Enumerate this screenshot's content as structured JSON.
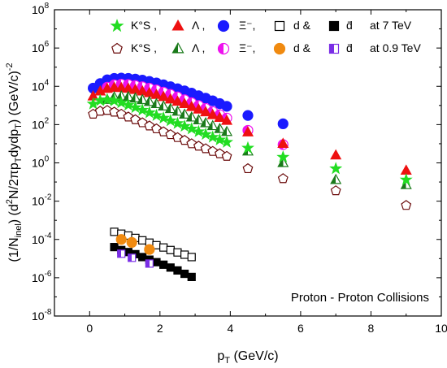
{
  "chart_data": {
    "type": "scatter",
    "title": "",
    "xlabel": "p_T (GeV/c)",
    "ylabel": "(1/N_inel) (d²N/2πp_T dydp_T) (GeV/c)^-2",
    "xlim": [
      -1,
      10
    ],
    "ylim_log10": [
      -8,
      8
    ],
    "y_scale": "log",
    "x_ticks": [
      "0",
      "2",
      "4",
      "6",
      "8",
      "10"
    ],
    "y_ticks": [
      "-8",
      "-6",
      "-4",
      "-2",
      "0",
      "2",
      "4",
      "6",
      "8"
    ],
    "annotation": "Proton - Proton Collisions",
    "legend": {
      "row1": {
        "labels": [
          "K°S ,",
          "Λ ,",
          "Ξ⁻,",
          "d &",
          "d̄",
          "at 7 TeV"
        ]
      },
      "row2": {
        "labels": [
          "K°S ,",
          "Λ ,",
          "Ξ⁻,",
          "d &",
          "d̄",
          "at 0.9 TeV"
        ]
      }
    },
    "colors": {
      "kaon7": "#22dd22",
      "lambda7": "#ee1111",
      "xi7": "#1a1aff",
      "d7": "#000000",
      "dbar7": "#000000",
      "kaon09": "#6b0b0b",
      "lambda09": "#1a7a1a",
      "xi09": "#ee11ee",
      "d09": "#f08a10",
      "dbar09": "#7a2ee6"
    },
    "series": [
      {
        "key": "xi7",
        "shape": "circle",
        "fill": "full",
        "x": [
          0.1,
          0.3,
          0.5,
          0.7,
          0.9,
          1.1,
          1.3,
          1.5,
          1.7,
          1.9,
          2.1,
          2.3,
          2.5,
          2.7,
          2.9,
          3.1,
          3.3,
          3.5,
          3.7,
          3.9,
          4.5,
          5.5
        ],
        "y": [
          8000,
          14000,
          22000,
          26000,
          27000,
          26000,
          24000,
          21000,
          18000,
          15000,
          12000,
          9500,
          7500,
          5800,
          4400,
          3200,
          2400,
          1750,
          1250,
          900,
          300,
          110
        ]
      },
      {
        "key": "xi09",
        "shape": "circle",
        "fill": "half",
        "x": [
          0.5,
          0.7,
          0.9,
          1.1,
          1.3,
          1.5,
          1.7,
          1.9,
          2.1,
          2.3,
          2.5,
          2.7,
          2.9,
          3.1,
          3.3,
          3.5,
          3.7,
          3.9,
          4.5,
          5.5
        ],
        "y": [
          9000,
          12000,
          13000,
          12500,
          11000,
          9500,
          8000,
          6500,
          5000,
          3800,
          2800,
          2000,
          1400,
          1000,
          700,
          480,
          330,
          220,
          50,
          9
        ]
      },
      {
        "key": "lambda7",
        "shape": "triangle",
        "fill": "full",
        "x": [
          0.1,
          0.3,
          0.5,
          0.7,
          0.9,
          1.1,
          1.3,
          1.5,
          1.7,
          1.9,
          2.1,
          2.3,
          2.5,
          2.7,
          2.9,
          3.1,
          3.3,
          3.5,
          3.7,
          3.9,
          4.5,
          5.5,
          7.0,
          9.0
        ],
        "y": [
          3000,
          5500,
          7500,
          8500,
          8300,
          7600,
          6600,
          5500,
          4500,
          3600,
          2800,
          2100,
          1600,
          1200,
          850,
          620,
          450,
          320,
          230,
          160,
          40,
          10,
          2.5,
          0.4
        ]
      },
      {
        "key": "lambda09",
        "shape": "triangle",
        "fill": "half",
        "x": [
          0.5,
          0.7,
          0.9,
          1.1,
          1.3,
          1.5,
          1.7,
          1.9,
          2.1,
          2.3,
          2.5,
          2.7,
          2.9,
          3.1,
          3.3,
          3.5,
          3.7,
          3.9,
          4.5,
          5.5,
          7.0,
          9.0
        ],
        "y": [
          2000,
          2700,
          3000,
          2800,
          2400,
          1950,
          1550,
          1200,
          900,
          660,
          480,
          340,
          240,
          170,
          120,
          85,
          60,
          42,
          4,
          1.0,
          0.13,
          0.07
        ]
      },
      {
        "key": "kaon7",
        "shape": "star",
        "fill": "full",
        "x": [
          0.1,
          0.3,
          0.5,
          0.7,
          0.9,
          1.1,
          1.3,
          1.5,
          1.7,
          1.9,
          2.1,
          2.3,
          2.5,
          2.7,
          2.9,
          3.1,
          3.3,
          3.5,
          3.7,
          3.9,
          4.5,
          5.5,
          7.0,
          9.0
        ],
        "y": [
          1200,
          1800,
          2000,
          1750,
          1400,
          1050,
          780,
          570,
          420,
          300,
          220,
          160,
          115,
          82,
          60,
          43,
          31,
          22,
          16,
          12,
          6,
          2,
          0.5,
          0.13
        ]
      },
      {
        "key": "kaon09",
        "shape": "pentagon",
        "fill": "open",
        "x": [
          0.1,
          0.3,
          0.5,
          0.7,
          0.9,
          1.1,
          1.3,
          1.5,
          1.7,
          1.9,
          2.1,
          2.3,
          2.5,
          2.7,
          2.9,
          3.1,
          3.3,
          3.5,
          3.7,
          3.9,
          4.5,
          5.5,
          7.0,
          9.0
        ],
        "y": [
          350,
          500,
          550,
          450,
          350,
          250,
          180,
          125,
          85,
          60,
          42,
          30,
          21,
          15,
          10,
          7.5,
          5.5,
          4,
          3,
          2.2,
          0.5,
          0.15,
          0.035,
          0.006
        ]
      },
      {
        "key": "d7",
        "shape": "square",
        "fill": "open",
        "x": [
          0.7,
          0.9,
          1.1,
          1.3,
          1.5,
          1.7,
          1.9,
          2.1,
          2.3,
          2.5,
          2.7,
          2.9
        ],
        "y": [
          0.00025,
          0.0002,
          0.00016,
          0.00012,
          9e-05,
          6.8e-05,
          5e-05,
          3.8e-05,
          2.8e-05,
          2.1e-05,
          1.6e-05,
          1.2e-05
        ]
      },
      {
        "key": "dbar7",
        "shape": "square",
        "fill": "full",
        "x": [
          0.7,
          0.9,
          1.1,
          1.3,
          1.5,
          1.7,
          1.9,
          2.1,
          2.3,
          2.5,
          2.7,
          2.9
        ],
        "y": [
          4e-05,
          2.8e-05,
          2.2e-05,
          1.7e-05,
          1.2e-05,
          8.8e-06,
          6.5e-06,
          4.8e-06,
          3.4e-06,
          2.4e-06,
          1.6e-06,
          1.1e-06
        ]
      },
      {
        "key": "d09",
        "shape": "circle",
        "fill": "full",
        "x": [
          0.9,
          1.2,
          1.7
        ],
        "y": [
          0.0001,
          7e-05,
          3e-05
        ]
      },
      {
        "key": "dbar09",
        "shape": "square",
        "fill": "half",
        "x": [
          0.9,
          1.2,
          1.7
        ],
        "y": [
          1.8e-05,
          1.1e-05,
          5.5e-06
        ]
      }
    ]
  }
}
